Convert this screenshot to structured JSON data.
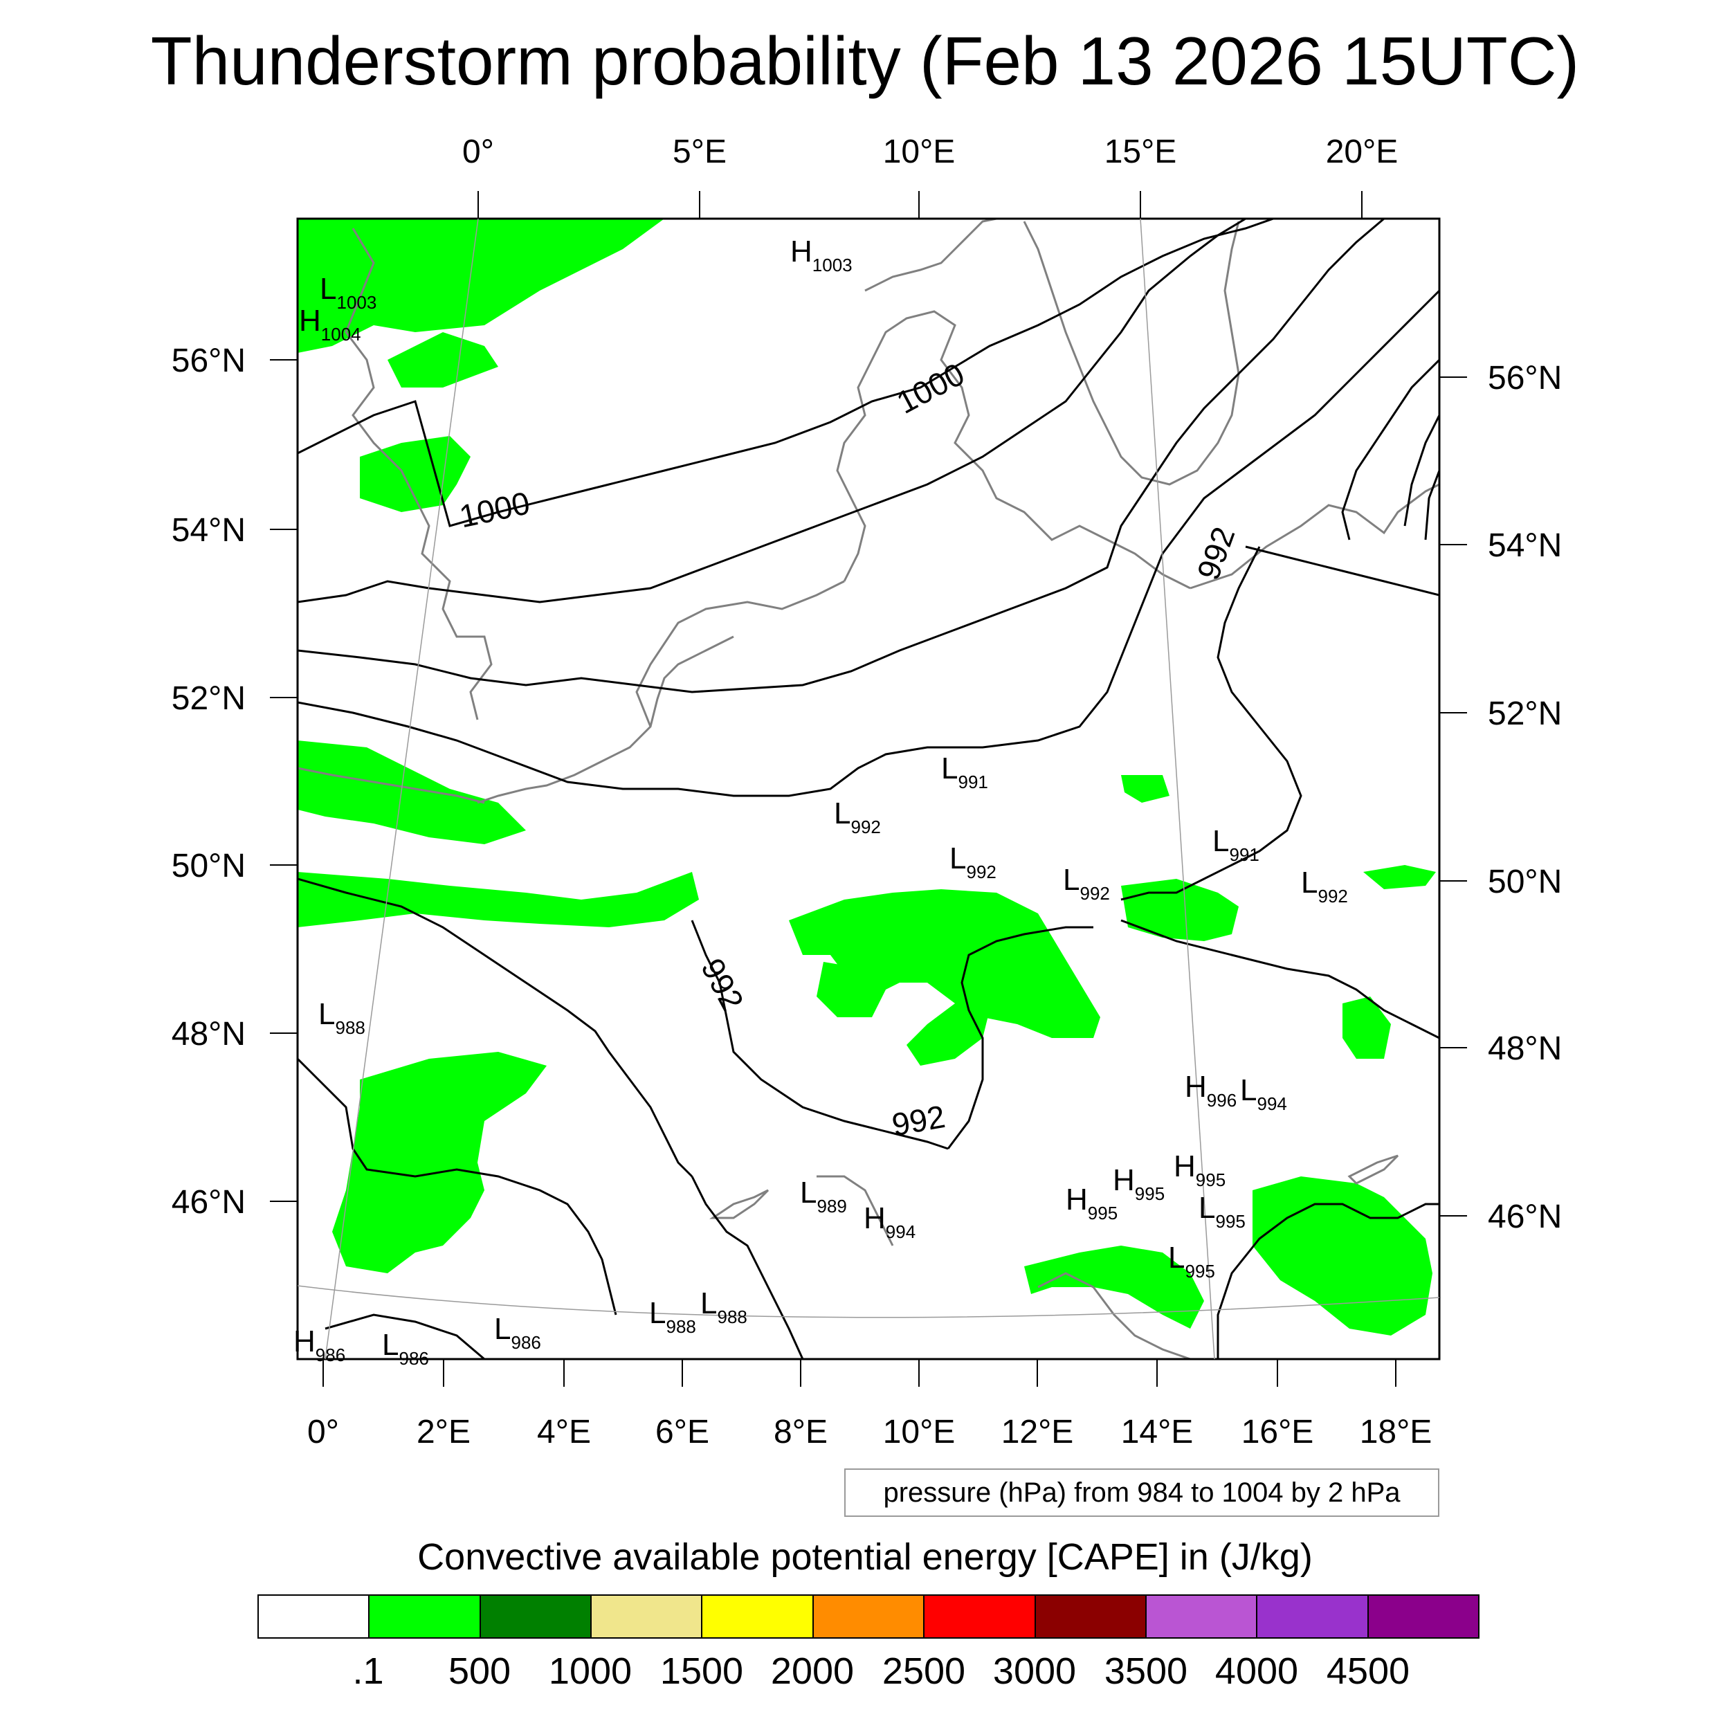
{
  "title": "Thunderstorm probability (Feb 13 2026 15UTC)",
  "map": {
    "top_lon_labels": [
      "0°",
      "5°E",
      "10°E",
      "15°E",
      "20°E"
    ],
    "bottom_lon_labels": [
      "0°",
      "2°E",
      "4°E",
      "6°E",
      "8°E",
      "10°E",
      "12°E",
      "14°E",
      "16°E",
      "18°E"
    ],
    "left_lat_labels": [
      "56°N",
      "54°N",
      "52°N",
      "50°N",
      "48°N",
      "46°N"
    ],
    "right_lat_labels": [
      "56°N",
      "54°N",
      "52°N",
      "50°N",
      "48°N",
      "46°N"
    ],
    "contour_labels": [
      "1000",
      "1000",
      "992",
      "992",
      "992"
    ],
    "pressure_centers": [
      {
        "type": "H",
        "value": "1003"
      },
      {
        "type": "L",
        "value": "1003"
      },
      {
        "type": "H",
        "value": "1004"
      },
      {
        "type": "L",
        "value": "991"
      },
      {
        "type": "L",
        "value": "992"
      },
      {
        "type": "L",
        "value": "992"
      },
      {
        "type": "L",
        "value": "992"
      },
      {
        "type": "L",
        "value": "991"
      },
      {
        "type": "L",
        "value": "992"
      },
      {
        "type": "L",
        "value": "988"
      },
      {
        "type": "H",
        "value": "996"
      },
      {
        "type": "L",
        "value": "994"
      },
      {
        "type": "H",
        "value": "995"
      },
      {
        "type": "H",
        "value": "995"
      },
      {
        "type": "H",
        "value": "995"
      },
      {
        "type": "L",
        "value": "995"
      },
      {
        "type": "L",
        "value": "989"
      },
      {
        "type": "H",
        "value": "994"
      },
      {
        "type": "L",
        "value": "995"
      },
      {
        "type": "L",
        "value": "988"
      },
      {
        "type": "L",
        "value": "988"
      },
      {
        "type": "L",
        "value": "986"
      },
      {
        "type": "H",
        "value": "986"
      },
      {
        "type": "L",
        "value": "986"
      }
    ],
    "colors": {
      "cape_fill": "#00ff00",
      "contour": "#000000",
      "coastline": "#808080",
      "frame": "#000000"
    }
  },
  "contour_note": "pressure (hPa) from 984 to 1004 by 2 hPa",
  "colorbar": {
    "title": "Convective available potential energy [CAPE] in (J/kg)",
    "labels": [
      ".1",
      "500",
      "1000",
      "1500",
      "2000",
      "2500",
      "3000",
      "3500",
      "4000",
      "4500"
    ],
    "colors": [
      "#ffffff",
      "#00ff00",
      "#008000",
      "#f0e68c",
      "#ffff00",
      "#ff8c00",
      "#ff0000",
      "#8b0000",
      "#ba55d3",
      "#9932cc",
      "#8b008b"
    ]
  }
}
